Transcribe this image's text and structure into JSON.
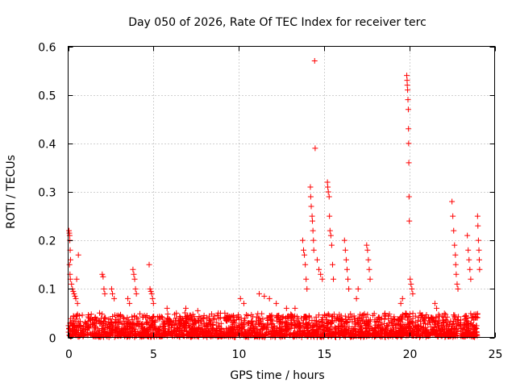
{
  "chart_data": {
    "type": "scatter",
    "title": "Day 050 of 2026, Rate Of TEC Index for receiver terc",
    "xlabel": "GPS time / hours",
    "ylabel": "ROTI / TECUs",
    "xlim": [
      0,
      25
    ],
    "ylim": [
      0,
      0.6
    ],
    "x_ticks": [
      0,
      5,
      10,
      15,
      20,
      25
    ],
    "x_tick_labels": [
      "0",
      "5",
      "10",
      "15",
      "20",
      "25"
    ],
    "y_ticks": [
      0,
      0.1,
      0.2,
      0.3,
      0.4,
      0.5,
      0.6
    ],
    "y_tick_labels": [
      "0",
      "0.1",
      "0.2",
      "0.3",
      "0.4",
      "0.5",
      "0.6"
    ],
    "grid": true,
    "marker": "+",
    "color": "#ff0000",
    "series": [
      {
        "name": "ROTI",
        "points": [
          [
            0.05,
            0.22
          ],
          [
            0.07,
            0.215
          ],
          [
            0.09,
            0.21
          ],
          [
            0.1,
            0.2
          ],
          [
            0.12,
            0.18
          ],
          [
            0.14,
            0.16
          ],
          [
            0.08,
            0.15
          ],
          [
            0.11,
            0.13
          ],
          [
            0.13,
            0.12
          ],
          [
            0.2,
            0.11
          ],
          [
            0.25,
            0.1
          ],
          [
            0.3,
            0.095
          ],
          [
            0.35,
            0.09
          ],
          [
            0.4,
            0.085
          ],
          [
            0.45,
            0.08
          ],
          [
            0.5,
            0.12
          ],
          [
            0.55,
            0.07
          ],
          [
            0.6,
            0.17
          ],
          [
            2.0,
            0.13
          ],
          [
            2.05,
            0.125
          ],
          [
            2.1,
            0.1
          ],
          [
            2.15,
            0.09
          ],
          [
            2.55,
            0.1
          ],
          [
            2.6,
            0.09
          ],
          [
            2.7,
            0.08
          ],
          [
            3.5,
            0.08
          ],
          [
            3.6,
            0.07
          ],
          [
            3.8,
            0.14
          ],
          [
            3.85,
            0.13
          ],
          [
            3.9,
            0.12
          ],
          [
            3.95,
            0.1
          ],
          [
            4.0,
            0.09
          ],
          [
            4.75,
            0.15
          ],
          [
            4.8,
            0.1
          ],
          [
            4.85,
            0.095
          ],
          [
            4.9,
            0.09
          ],
          [
            4.95,
            0.08
          ],
          [
            5.0,
            0.07
          ],
          [
            5.8,
            0.06
          ],
          [
            6.9,
            0.06
          ],
          [
            7.6,
            0.055
          ],
          [
            8.8,
            0.05
          ],
          [
            10.1,
            0.08
          ],
          [
            10.3,
            0.07
          ],
          [
            11.2,
            0.09
          ],
          [
            11.5,
            0.085
          ],
          [
            11.8,
            0.08
          ],
          [
            12.2,
            0.07
          ],
          [
            12.8,
            0.06
          ],
          [
            13.3,
            0.06
          ],
          [
            13.75,
            0.2
          ],
          [
            13.8,
            0.18
          ],
          [
            13.85,
            0.17
          ],
          [
            13.9,
            0.15
          ],
          [
            13.95,
            0.12
          ],
          [
            14.0,
            0.1
          ],
          [
            14.2,
            0.31
          ],
          [
            14.22,
            0.29
          ],
          [
            14.25,
            0.27
          ],
          [
            14.3,
            0.25
          ],
          [
            14.32,
            0.24
          ],
          [
            14.35,
            0.22
          ],
          [
            14.38,
            0.2
          ],
          [
            14.4,
            0.18
          ],
          [
            14.45,
            0.57
          ],
          [
            14.48,
            0.39
          ],
          [
            14.6,
            0.16
          ],
          [
            14.7,
            0.14
          ],
          [
            14.8,
            0.13
          ],
          [
            14.9,
            0.12
          ],
          [
            15.2,
            0.32
          ],
          [
            15.22,
            0.31
          ],
          [
            15.25,
            0.3
          ],
          [
            15.3,
            0.29
          ],
          [
            15.32,
            0.25
          ],
          [
            15.35,
            0.22
          ],
          [
            15.4,
            0.21
          ],
          [
            15.45,
            0.19
          ],
          [
            15.5,
            0.15
          ],
          [
            15.55,
            0.12
          ],
          [
            16.2,
            0.2
          ],
          [
            16.25,
            0.18
          ],
          [
            16.3,
            0.16
          ],
          [
            16.35,
            0.14
          ],
          [
            16.4,
            0.12
          ],
          [
            16.45,
            0.1
          ],
          [
            16.9,
            0.08
          ],
          [
            17.0,
            0.1
          ],
          [
            17.5,
            0.19
          ],
          [
            17.55,
            0.18
          ],
          [
            17.6,
            0.16
          ],
          [
            17.65,
            0.14
          ],
          [
            17.7,
            0.12
          ],
          [
            19.5,
            0.07
          ],
          [
            19.6,
            0.08
          ],
          [
            19.85,
            0.54
          ],
          [
            19.87,
            0.53
          ],
          [
            19.88,
            0.52
          ],
          [
            19.9,
            0.51
          ],
          [
            19.92,
            0.49
          ],
          [
            19.94,
            0.47
          ],
          [
            19.95,
            0.43
          ],
          [
            19.96,
            0.4
          ],
          [
            19.97,
            0.36
          ],
          [
            19.98,
            0.29
          ],
          [
            20.0,
            0.24
          ],
          [
            20.05,
            0.12
          ],
          [
            20.1,
            0.11
          ],
          [
            20.15,
            0.1
          ],
          [
            20.2,
            0.09
          ],
          [
            21.5,
            0.07
          ],
          [
            21.6,
            0.06
          ],
          [
            22.5,
            0.28
          ],
          [
            22.55,
            0.25
          ],
          [
            22.6,
            0.22
          ],
          [
            22.65,
            0.19
          ],
          [
            22.7,
            0.17
          ],
          [
            22.72,
            0.15
          ],
          [
            22.75,
            0.13
          ],
          [
            22.8,
            0.11
          ],
          [
            22.85,
            0.1
          ],
          [
            23.4,
            0.21
          ],
          [
            23.45,
            0.18
          ],
          [
            23.5,
            0.16
          ],
          [
            23.55,
            0.14
          ],
          [
            23.6,
            0.12
          ],
          [
            24.0,
            0.25
          ],
          [
            24.02,
            0.23
          ],
          [
            24.05,
            0.2
          ],
          [
            24.08,
            0.18
          ],
          [
            24.1,
            0.16
          ],
          [
            24.12,
            0.14
          ]
        ]
      }
    ],
    "baseline_band": {
      "description": "Dense noise floor of points spanning the whole day",
      "x_range": [
        0,
        24
      ],
      "y_range": [
        0.0,
        0.045
      ]
    }
  }
}
